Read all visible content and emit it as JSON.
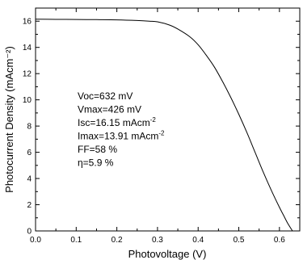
{
  "chart_data": {
    "type": "line",
    "xlabel": "Photovoltage (V)",
    "ylabel": "Photocurrent Density (mAcm⁻²)",
    "xlim": [
      0.0,
      0.65
    ],
    "ylim": [
      0,
      17
    ],
    "x_ticks": [
      "0.0",
      "0.1",
      "0.2",
      "0.3",
      "0.4",
      "0.5",
      "0.6"
    ],
    "y_ticks": [
      "0",
      "2",
      "4",
      "6",
      "8",
      "10",
      "12",
      "14",
      "16"
    ],
    "grid": false,
    "legend": "none",
    "series": [
      {
        "color": "#000000",
        "x": [
          0.0,
          0.05,
          0.1,
          0.15,
          0.2,
          0.25,
          0.28,
          0.3,
          0.33,
          0.35,
          0.38,
          0.4,
          0.42,
          0.44,
          0.46,
          0.48,
          0.5,
          0.52,
          0.54,
          0.56,
          0.58,
          0.6,
          0.61,
          0.62,
          0.63,
          0.632
        ],
        "y": [
          16.15,
          16.14,
          16.13,
          16.12,
          16.1,
          16.05,
          16.0,
          15.95,
          15.7,
          15.4,
          14.8,
          14.2,
          13.4,
          12.5,
          11.4,
          10.2,
          8.9,
          7.5,
          6.0,
          4.5,
          3.1,
          1.8,
          1.2,
          0.6,
          0.1,
          0.0
        ]
      }
    ],
    "annotations": [
      {
        "base": "Voc=632 mV",
        "sup": ""
      },
      {
        "base": "Vmax=426 mV",
        "sup": ""
      },
      {
        "base": "Isc=16.15 mAcm",
        "sup": "-2"
      },
      {
        "base": "Imax=13.91 mAcm",
        "sup": "-2"
      },
      {
        "base": "FF=58 %",
        "sup": ""
      },
      {
        "base": "η=5.9 %",
        "sup": ""
      }
    ]
  }
}
